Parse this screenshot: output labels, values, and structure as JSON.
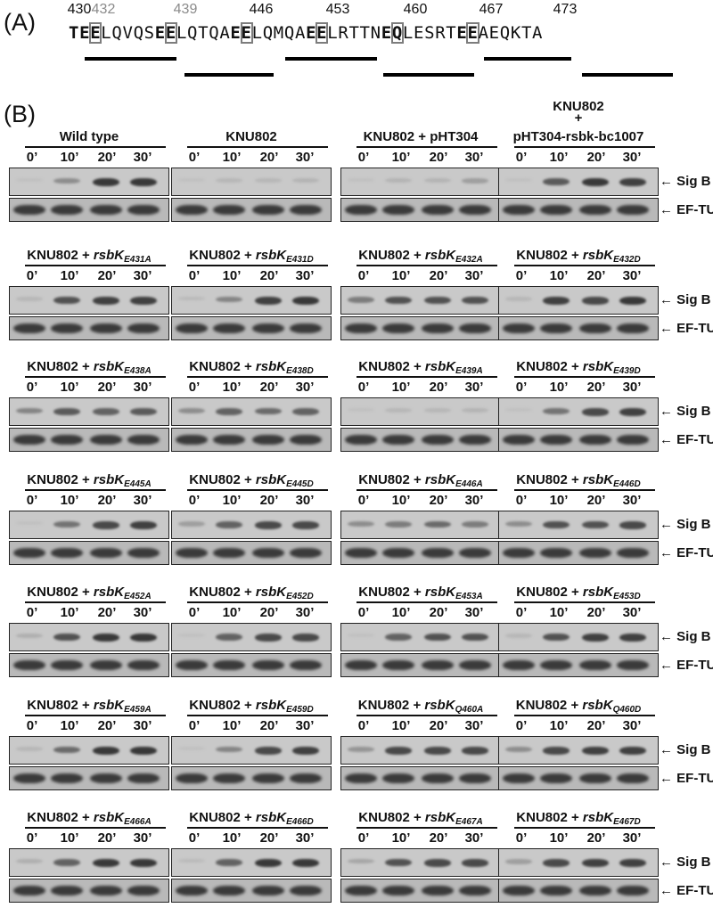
{
  "panel_a": {
    "label": "(A)",
    "numbers": [
      {
        "text": "430",
        "grey": false
      },
      {
        "text": "432",
        "grey": true
      },
      {
        "text": "439",
        "grey": true
      },
      {
        "text": "446",
        "grey": false
      },
      {
        "text": "453",
        "grey": false
      },
      {
        "text": "460",
        "grey": false
      },
      {
        "text": "467",
        "grey": false
      },
      {
        "text": "473",
        "grey": false
      }
    ],
    "sequence": "TEELQVQSEELQTQAEELQMQAEELRTTNEQLESRTEEAEQKTA",
    "bold_positions": [
      0,
      1,
      2,
      8,
      9,
      15,
      16,
      22,
      23,
      29,
      30,
      36,
      37
    ],
    "boxed_positions": [
      2,
      9,
      16,
      23,
      30,
      37
    ]
  },
  "panel_b": {
    "label": "(B)",
    "time_points": [
      "0’",
      "10’",
      "20’",
      "30’"
    ],
    "band_labels": {
      "sigb": "Sig B",
      "eftu": "EF-TU"
    },
    "rows": [
      [
        {
          "title": "Wild type",
          "sigb": [
            0.05,
            0.35,
            0.85,
            0.85
          ]
        },
        {
          "title": "KNU802",
          "sigb": [
            0.05,
            0.1,
            0.1,
            0.12
          ]
        },
        {
          "title": "KNU802 + pHT304",
          "sigb": [
            0.05,
            0.12,
            0.12,
            0.25
          ]
        },
        {
          "title_top": "KNU802",
          "title_plus": "+",
          "title": "pHT304-rsbk-bc1007",
          "sigb": [
            0.05,
            0.65,
            0.85,
            0.8
          ]
        }
      ],
      [
        {
          "title": "KNU802 + ",
          "gene": "rsbK",
          "sub": "E431A",
          "sigb": [
            0.1,
            0.7,
            0.8,
            0.8
          ]
        },
        {
          "title": "KNU802 + ",
          "gene": "rsbK",
          "sub": "E431D",
          "sigb": [
            0.08,
            0.4,
            0.8,
            0.85
          ]
        },
        {
          "title": "KNU802 + ",
          "gene": "rsbK",
          "sub": "E432A",
          "sigb": [
            0.45,
            0.7,
            0.7,
            0.7
          ]
        },
        {
          "title": "KNU802 + ",
          "gene": "rsbK",
          "sub": "E432D",
          "sigb": [
            0.1,
            0.8,
            0.75,
            0.85
          ]
        }
      ],
      [
        {
          "title": "KNU802 + ",
          "gene": "rsbK",
          "sub": "E438A",
          "sigb": [
            0.4,
            0.65,
            0.6,
            0.65
          ]
        },
        {
          "title": "KNU802 + ",
          "gene": "rsbK",
          "sub": "E438D",
          "sigb": [
            0.35,
            0.6,
            0.55,
            0.6
          ]
        },
        {
          "title": "KNU802 + ",
          "gene": "rsbK",
          "sub": "E439A",
          "sigb": [
            0.05,
            0.1,
            0.1,
            0.12
          ]
        },
        {
          "title": "KNU802 + ",
          "gene": "rsbK",
          "sub": "E439D",
          "sigb": [
            0.05,
            0.5,
            0.75,
            0.8
          ]
        }
      ],
      [
        {
          "title": "KNU802 + ",
          "gene": "rsbK",
          "sub": "E445A",
          "sigb": [
            0.05,
            0.5,
            0.75,
            0.8
          ]
        },
        {
          "title": "KNU802 + ",
          "gene": "rsbK",
          "sub": "E445D",
          "sigb": [
            0.25,
            0.6,
            0.75,
            0.75
          ]
        },
        {
          "title": "KNU802 + ",
          "gene": "rsbK",
          "sub": "E446A",
          "sigb": [
            0.35,
            0.45,
            0.55,
            0.45
          ]
        },
        {
          "title": "KNU802 + ",
          "gene": "rsbK",
          "sub": "E446D",
          "sigb": [
            0.35,
            0.7,
            0.7,
            0.75
          ]
        }
      ],
      [
        {
          "title": "KNU802 + ",
          "gene": "rsbK",
          "sub": "E452A",
          "sigb": [
            0.15,
            0.7,
            0.85,
            0.85
          ]
        },
        {
          "title": "KNU802 + ",
          "gene": "rsbK",
          "sub": "E452D",
          "sigb": [
            0.05,
            0.6,
            0.75,
            0.75
          ]
        },
        {
          "title": "KNU802 + ",
          "gene": "rsbK",
          "sub": "E453A",
          "sigb": [
            0.05,
            0.6,
            0.7,
            0.7
          ]
        },
        {
          "title": "KNU802 + ",
          "gene": "rsbK",
          "sub": "E453D",
          "sigb": [
            0.1,
            0.7,
            0.8,
            0.8
          ]
        }
      ],
      [
        {
          "title": "KNU802 + ",
          "gene": "rsbK",
          "sub": "E459A",
          "sigb": [
            0.1,
            0.55,
            0.85,
            0.85
          ]
        },
        {
          "title": "KNU802 + ",
          "gene": "rsbK",
          "sub": "E459D",
          "sigb": [
            0.05,
            0.4,
            0.75,
            0.8
          ]
        },
        {
          "title": "KNU802 + ",
          "gene": "rsbK",
          "sub": "Q460A",
          "sigb": [
            0.3,
            0.75,
            0.75,
            0.75
          ]
        },
        {
          "title": "KNU802 + ",
          "gene": "rsbK",
          "sub": "Q460D",
          "sigb": [
            0.35,
            0.75,
            0.8,
            0.8
          ]
        }
      ],
      [
        {
          "title": "KNU802 + ",
          "gene": "rsbK",
          "sub": "E466A",
          "sigb": [
            0.15,
            0.6,
            0.85,
            0.85
          ]
        },
        {
          "title": "KNU802 + ",
          "gene": "rsbK",
          "sub": "E466D",
          "sigb": [
            0.08,
            0.6,
            0.85,
            0.85
          ]
        },
        {
          "title": "KNU802 + ",
          "gene": "rsbK",
          "sub": "E467A",
          "sigb": [
            0.2,
            0.7,
            0.75,
            0.75
          ]
        },
        {
          "title": "KNU802 + ",
          "gene": "rsbK",
          "sub": "E467D",
          "sigb": [
            0.25,
            0.75,
            0.8,
            0.8
          ]
        }
      ]
    ]
  }
}
